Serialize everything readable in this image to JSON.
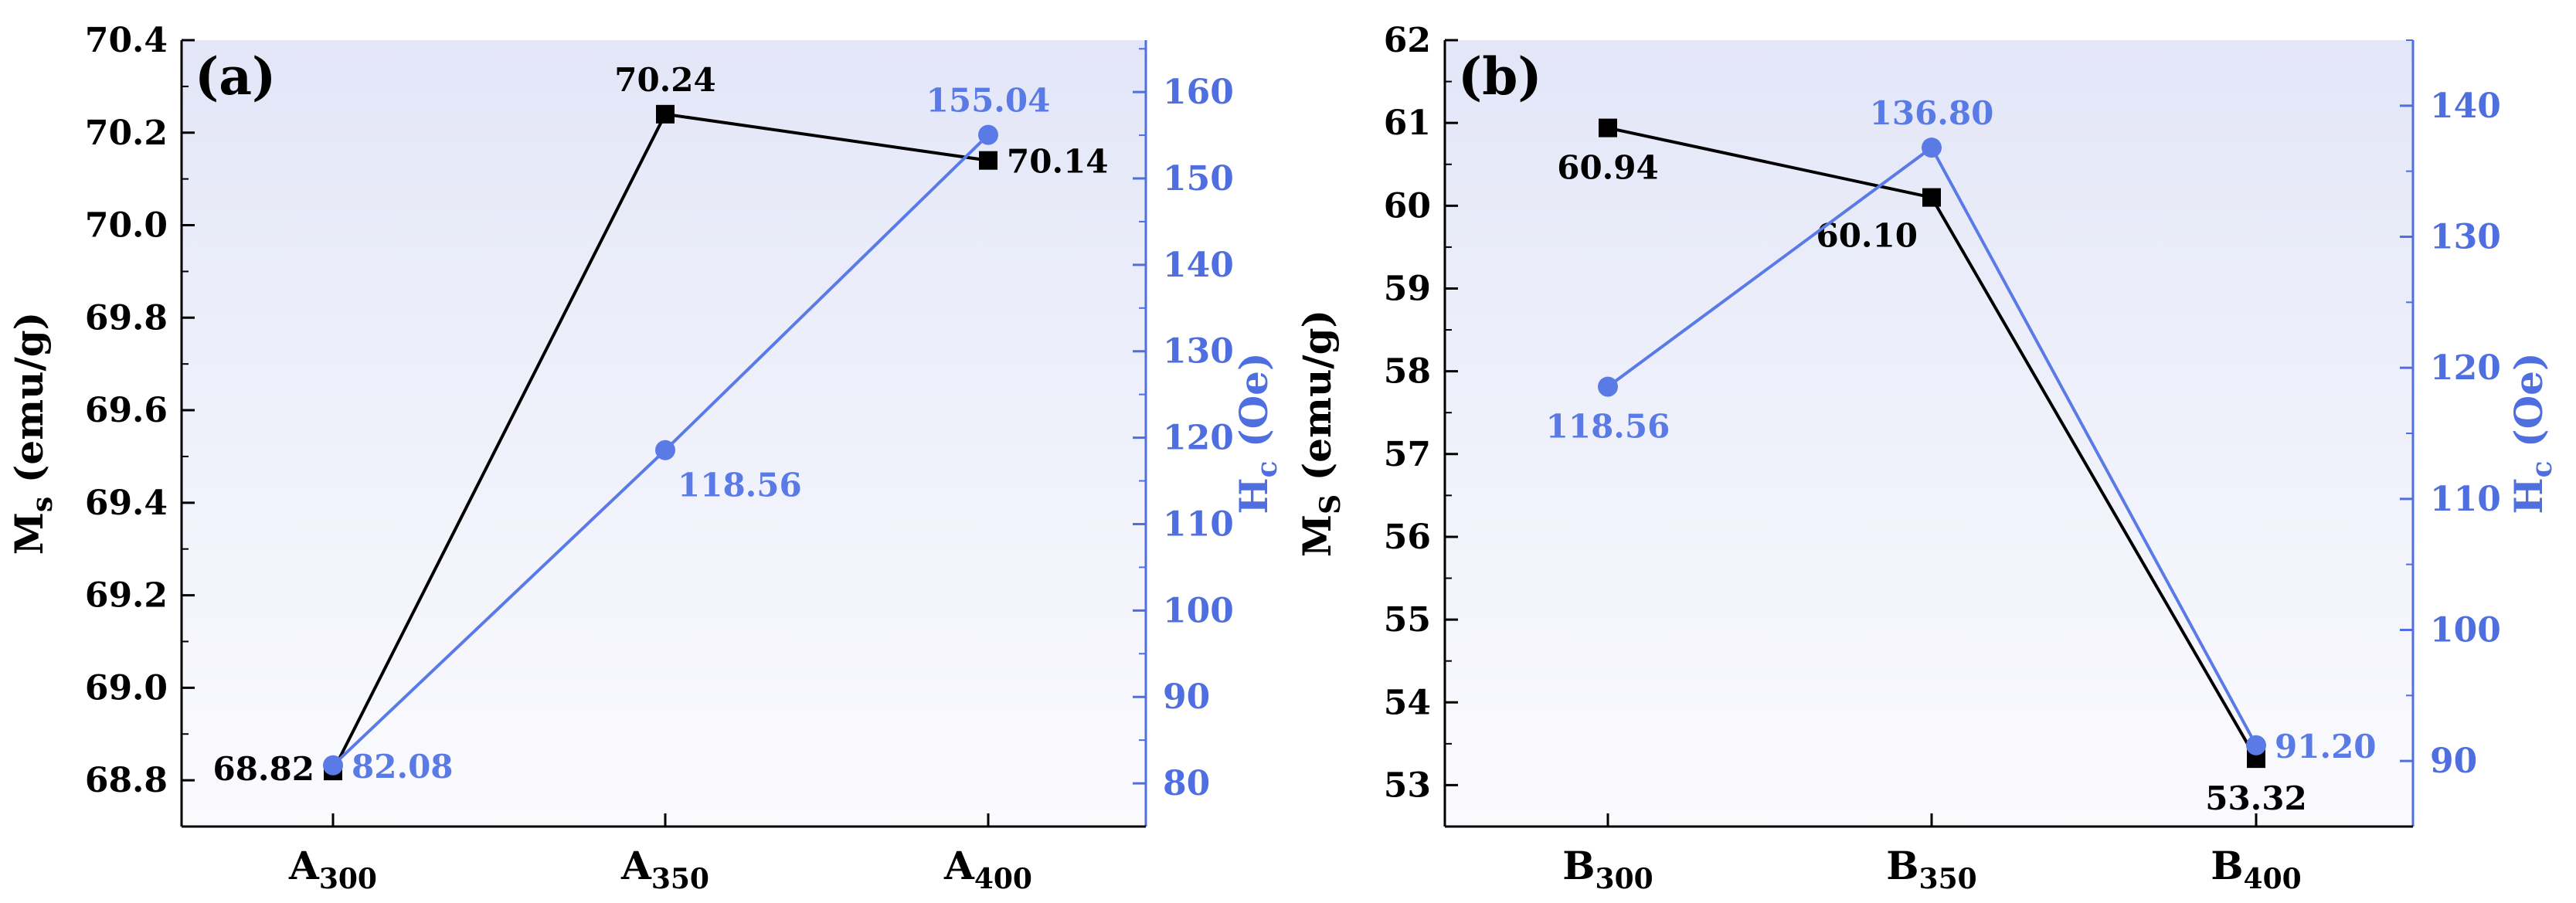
{
  "colors": {
    "ms_series": "#000000",
    "hc_series": "#5a7ae6",
    "left_axis": "#000000",
    "right_axis": "#4f6fe0",
    "plot_bg_top": "#e3e6f7",
    "plot_bg_bottom": "#fbfbfe"
  },
  "chart_data": [
    {
      "type": "line",
      "panel_label": "(a)",
      "categories": [
        {
          "base": "A",
          "sub": "300"
        },
        {
          "base": "A",
          "sub": "350"
        },
        {
          "base": "A",
          "sub": "400"
        }
      ],
      "left_axis": {
        "label_main": "M",
        "label_sub": "s",
        "label_rest": " (emu/g)",
        "ylim": [
          68.7,
          70.4
        ],
        "ticks": [
          68.8,
          69.0,
          69.2,
          69.4,
          69.6,
          69.8,
          70.0,
          70.2,
          70.4
        ],
        "tick_labels": [
          "68.8",
          "69.0",
          "69.2",
          "69.4",
          "69.6",
          "69.8",
          "70.0",
          "70.2",
          "70.4"
        ],
        "minor_step": 0.1
      },
      "right_axis": {
        "label_main": "H",
        "label_sub": "c",
        "label_rest": " (Oe)",
        "ylim": [
          75,
          166
        ],
        "ticks": [
          80,
          90,
          100,
          110,
          120,
          130,
          140,
          150,
          160
        ],
        "tick_labels": [
          "80",
          "90",
          "100",
          "110",
          "120",
          "130",
          "140",
          "150",
          "160"
        ],
        "minor_step": 5
      },
      "series": [
        {
          "axis": "left",
          "marker": "square",
          "values": [
            68.82,
            70.24,
            70.14
          ],
          "labels": [
            "68.82",
            "70.24",
            "70.14"
          ],
          "label_pos": [
            "left",
            "above",
            "right"
          ]
        },
        {
          "axis": "right",
          "marker": "circle",
          "values": [
            82.08,
            118.56,
            155.04
          ],
          "labels": [
            "82.08",
            "118.56",
            "155.04"
          ],
          "label_pos": [
            "right",
            "below-right",
            "above"
          ]
        }
      ]
    },
    {
      "type": "line",
      "panel_label": "(b)",
      "categories": [
        {
          "base": "B",
          "sub": "300"
        },
        {
          "base": "B",
          "sub": "350"
        },
        {
          "base": "B",
          "sub": "400"
        }
      ],
      "left_axis": {
        "label_main": "M",
        "label_sub": "S",
        "label_rest": " (emu/g)",
        "ylim": [
          52.5,
          62
        ],
        "ticks": [
          53,
          54,
          55,
          56,
          57,
          58,
          59,
          60,
          61,
          62
        ],
        "tick_labels": [
          "53",
          "54",
          "55",
          "56",
          "57",
          "58",
          "59",
          "60",
          "61",
          "62"
        ],
        "minor_step": 0.5
      },
      "right_axis": {
        "label_main": "H",
        "label_sub": "c",
        "label_rest": " (Oe)",
        "ylim": [
          85,
          145
        ],
        "ticks": [
          90,
          100,
          110,
          120,
          130,
          140
        ],
        "tick_labels": [
          "90",
          "100",
          "110",
          "120",
          "130",
          "140"
        ],
        "minor_step": 5
      },
      "series": [
        {
          "axis": "left",
          "marker": "square",
          "values": [
            60.94,
            60.1,
            53.32
          ],
          "labels": [
            "60.94",
            "60.10",
            "53.32"
          ],
          "label_pos": [
            "below",
            "below-left",
            "below"
          ]
        },
        {
          "axis": "right",
          "marker": "circle",
          "values": [
            118.56,
            136.8,
            91.2
          ],
          "labels": [
            "118.56",
            "136.80",
            "91.20"
          ],
          "label_pos": [
            "below",
            "above",
            "right"
          ]
        }
      ]
    }
  ]
}
